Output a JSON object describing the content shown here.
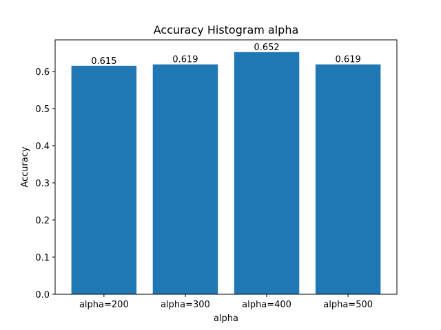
{
  "chart_data": {
    "type": "bar",
    "title": "Accuracy Histogram alpha",
    "xlabel": "alpha",
    "ylabel": "Accuracy",
    "categories": [
      "alpha=200",
      "alpha=300",
      "alpha=400",
      "alpha=500"
    ],
    "values": [
      0.615,
      0.619,
      0.652,
      0.619
    ],
    "data_labels": [
      "0.615",
      "0.619",
      "0.652",
      "0.619"
    ],
    "ylim": [
      0,
      0.685
    ],
    "yticks": [
      0.0,
      0.1,
      0.2,
      0.3,
      0.4,
      0.5,
      0.6
    ],
    "ytick_labels": [
      "0.0",
      "0.1",
      "0.2",
      "0.3",
      "0.4",
      "0.5",
      "0.6"
    ],
    "grid": false,
    "legend": "none",
    "bar_color": "#1f77b4"
  }
}
